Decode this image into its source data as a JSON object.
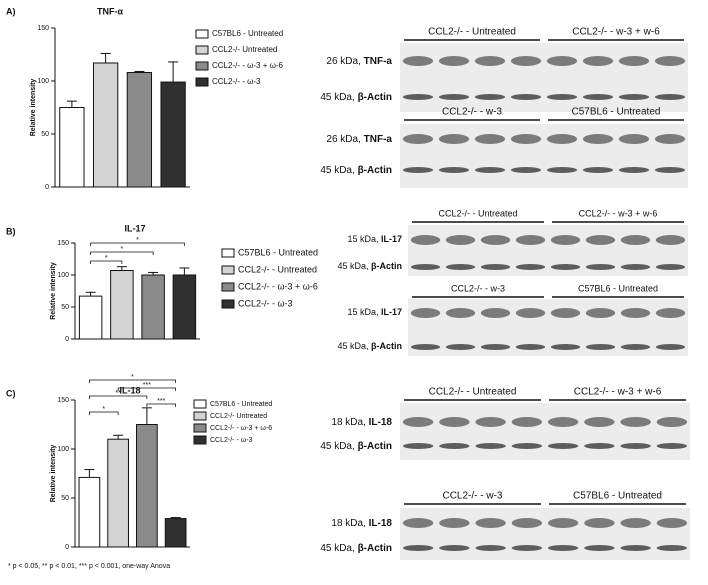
{
  "chart_data": [
    {
      "type": "bar",
      "panel": "A)",
      "title": "TNF-α",
      "y_label": "Relative intensity",
      "ylim": [
        0,
        150
      ],
      "yticks": [
        0,
        50,
        100,
        150
      ],
      "series": [
        {
          "name": "C57BL6 - Untreated",
          "color": "#ffffff",
          "values": [
            75
          ],
          "errors": [
            6
          ]
        },
        {
          "name": "CCL2-/- Untreated",
          "color": "#d4d4d4",
          "values": [
            117
          ],
          "errors": [
            9
          ]
        },
        {
          "name": "CCL2-/- - ω-3 + ω-6",
          "color": "#8a8a8a",
          "values": [
            108
          ],
          "errors": [
            1
          ]
        },
        {
          "name": "CCL2-/- - ω-3",
          "color": "#303030",
          "values": [
            99
          ],
          "errors": [
            19
          ]
        }
      ],
      "significance": []
    },
    {
      "type": "bar",
      "panel": "B)",
      "title": "IL-17",
      "y_label": "Relative intensity",
      "ylim": [
        0,
        150
      ],
      "yticks": [
        0,
        50,
        100,
        150
      ],
      "series": [
        {
          "name": "C57BL6 - Untreated",
          "color": "#ffffff",
          "values": [
            67
          ],
          "errors": [
            6
          ]
        },
        {
          "name": "CCL2-/- - Untreated",
          "color": "#d4d4d4",
          "values": [
            107
          ],
          "errors": [
            6
          ]
        },
        {
          "name": "CCL2-/- - ω-3 + ω-6",
          "color": "#8a8a8a",
          "values": [
            100
          ],
          "errors": [
            4
          ]
        },
        {
          "name": "CCL2-/- - ω-3",
          "color": "#303030",
          "values": [
            100
          ],
          "errors": [
            11
          ]
        }
      ],
      "significance": [
        {
          "between": [
            0,
            3
          ],
          "label": "*"
        },
        {
          "between": [
            0,
            2
          ],
          "label": "*"
        },
        {
          "between": [
            0,
            1
          ],
          "label": "*"
        }
      ]
    },
    {
      "type": "bar",
      "panel": "C)",
      "title": "IL-18",
      "y_label": "Relative intensity",
      "ylim": [
        0,
        150
      ],
      "yticks": [
        0,
        50,
        100,
        150
      ],
      "series": [
        {
          "name": "C57BL6 - Untreated",
          "color": "#ffffff",
          "values": [
            71
          ],
          "errors": [
            8
          ]
        },
        {
          "name": "CCL2-/- Untreated",
          "color": "#d4d4d4",
          "values": [
            110
          ],
          "errors": [
            4
          ]
        },
        {
          "name": "CCL2-/- - ω-3 + ω-6",
          "color": "#8a8a8a",
          "values": [
            125
          ],
          "errors": [
            17
          ]
        },
        {
          "name": "CCL2-/- - ω-3",
          "color": "#303030",
          "values": [
            29
          ],
          "errors": [
            1
          ]
        }
      ],
      "significance": [
        {
          "between": [
            0,
            3
          ],
          "label": "*"
        },
        {
          "between": [
            1,
            3
          ],
          "label": "***"
        },
        {
          "between": [
            0,
            2
          ],
          "label": "**"
        },
        {
          "between": [
            2,
            3
          ],
          "label": "***"
        },
        {
          "between": [
            0,
            1
          ],
          "label": "*"
        }
      ],
      "footnote": "* p < 0.05, ** p < 0.01, *** p < 0.001, one-way Anova"
    }
  ],
  "blots": [
    {
      "panels": [
        {
          "groups": [
            "CCL2-/- - Untreated",
            "CCL2-/- - w-3 + w-6"
          ],
          "bands": [
            {
              "size": "26 kDa,",
              "protein": "TNF-a"
            },
            {
              "size": "45 kDa,",
              "protein": "β-Actin"
            }
          ]
        },
        {
          "groups": [
            "CCL2-/- - w-3",
            "C57BL6 - Untreated"
          ],
          "bands": [
            {
              "size": "26 kDa,",
              "protein": "TNF-a"
            },
            {
              "size": "45 kDa,",
              "protein": "β-Actin"
            }
          ]
        }
      ]
    },
    {
      "panels": [
        {
          "groups": [
            "CCL2-/- - Untreated",
            "CCL2-/- - w-3 + w-6"
          ],
          "bands": [
            {
              "size": "15 kDa,",
              "protein": "IL-17"
            },
            {
              "size": "45 kDa,",
              "protein": "β-Actin"
            }
          ]
        },
        {
          "groups": [
            "CCL2-/- - w-3",
            "C57BL6 - Untreated"
          ],
          "bands": [
            {
              "size": "15 kDa,",
              "protein": "IL-17"
            },
            {
              "size": "45 kDa,",
              "protein": "β-Actin"
            }
          ]
        }
      ]
    },
    {
      "panels": [
        {
          "groups": [
            "CCL2-/- - Untreated",
            "CCL2-/- - w-3 + w-6"
          ],
          "bands": [
            {
              "size": "18 kDa,",
              "protein": "IL-18"
            },
            {
              "size": "45 kDa,",
              "protein": "β-Actin"
            }
          ]
        },
        {
          "groups": [
            "CCL2-/- - w-3",
            "C57BL6 - Untreated"
          ],
          "bands": [
            {
              "size": "18 kDa,",
              "protein": "IL-18"
            },
            {
              "size": "45 kDa,",
              "protein": "β-Actin"
            }
          ]
        }
      ]
    }
  ]
}
